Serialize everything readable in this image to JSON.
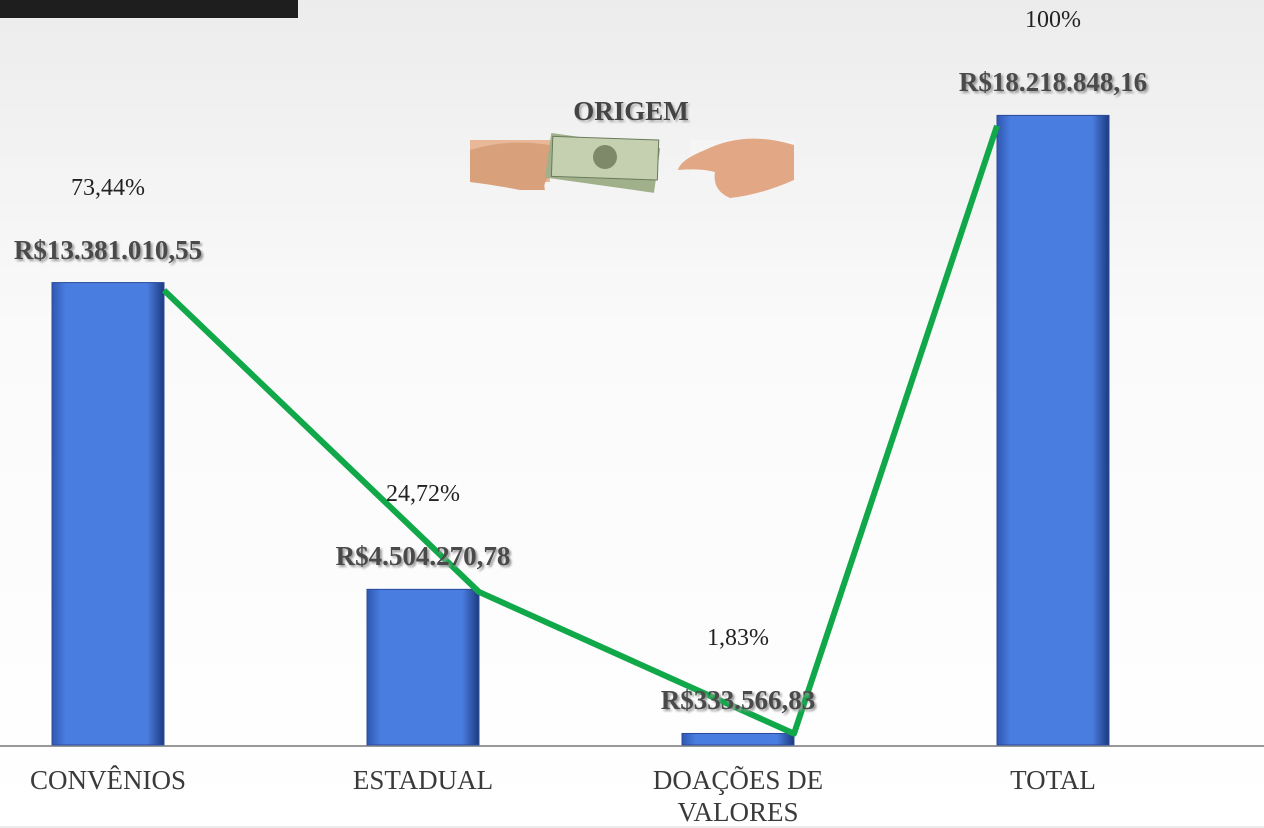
{
  "chart_data": {
    "type": "bar",
    "title": "ORIGEM",
    "categories": [
      "CONVÊNIOS",
      "ESTADUAL",
      "DOAÇÕES DE VALORES",
      "TOTAL"
    ],
    "values": [
      13381010.55,
      4504270.78,
      333566.83,
      18218848.16
    ],
    "value_labels": [
      "R$13.381.010,55",
      "R$4.504.270,78",
      "R$333.566,83",
      "R$18.218.848,16"
    ],
    "color": "#4a78d8",
    "ylim": [
      0,
      21500000
    ],
    "series": [
      {
        "color": "#11a84a",
        "axis": "y2",
        "values": [
          73.44,
          24.72,
          1.83,
          100
        ],
        "value_labels": [
          "73,44%",
          "24,72%",
          "1,83%",
          "100%"
        ]
      }
    ],
    "y2lim": [
      0,
      120
    ]
  }
}
